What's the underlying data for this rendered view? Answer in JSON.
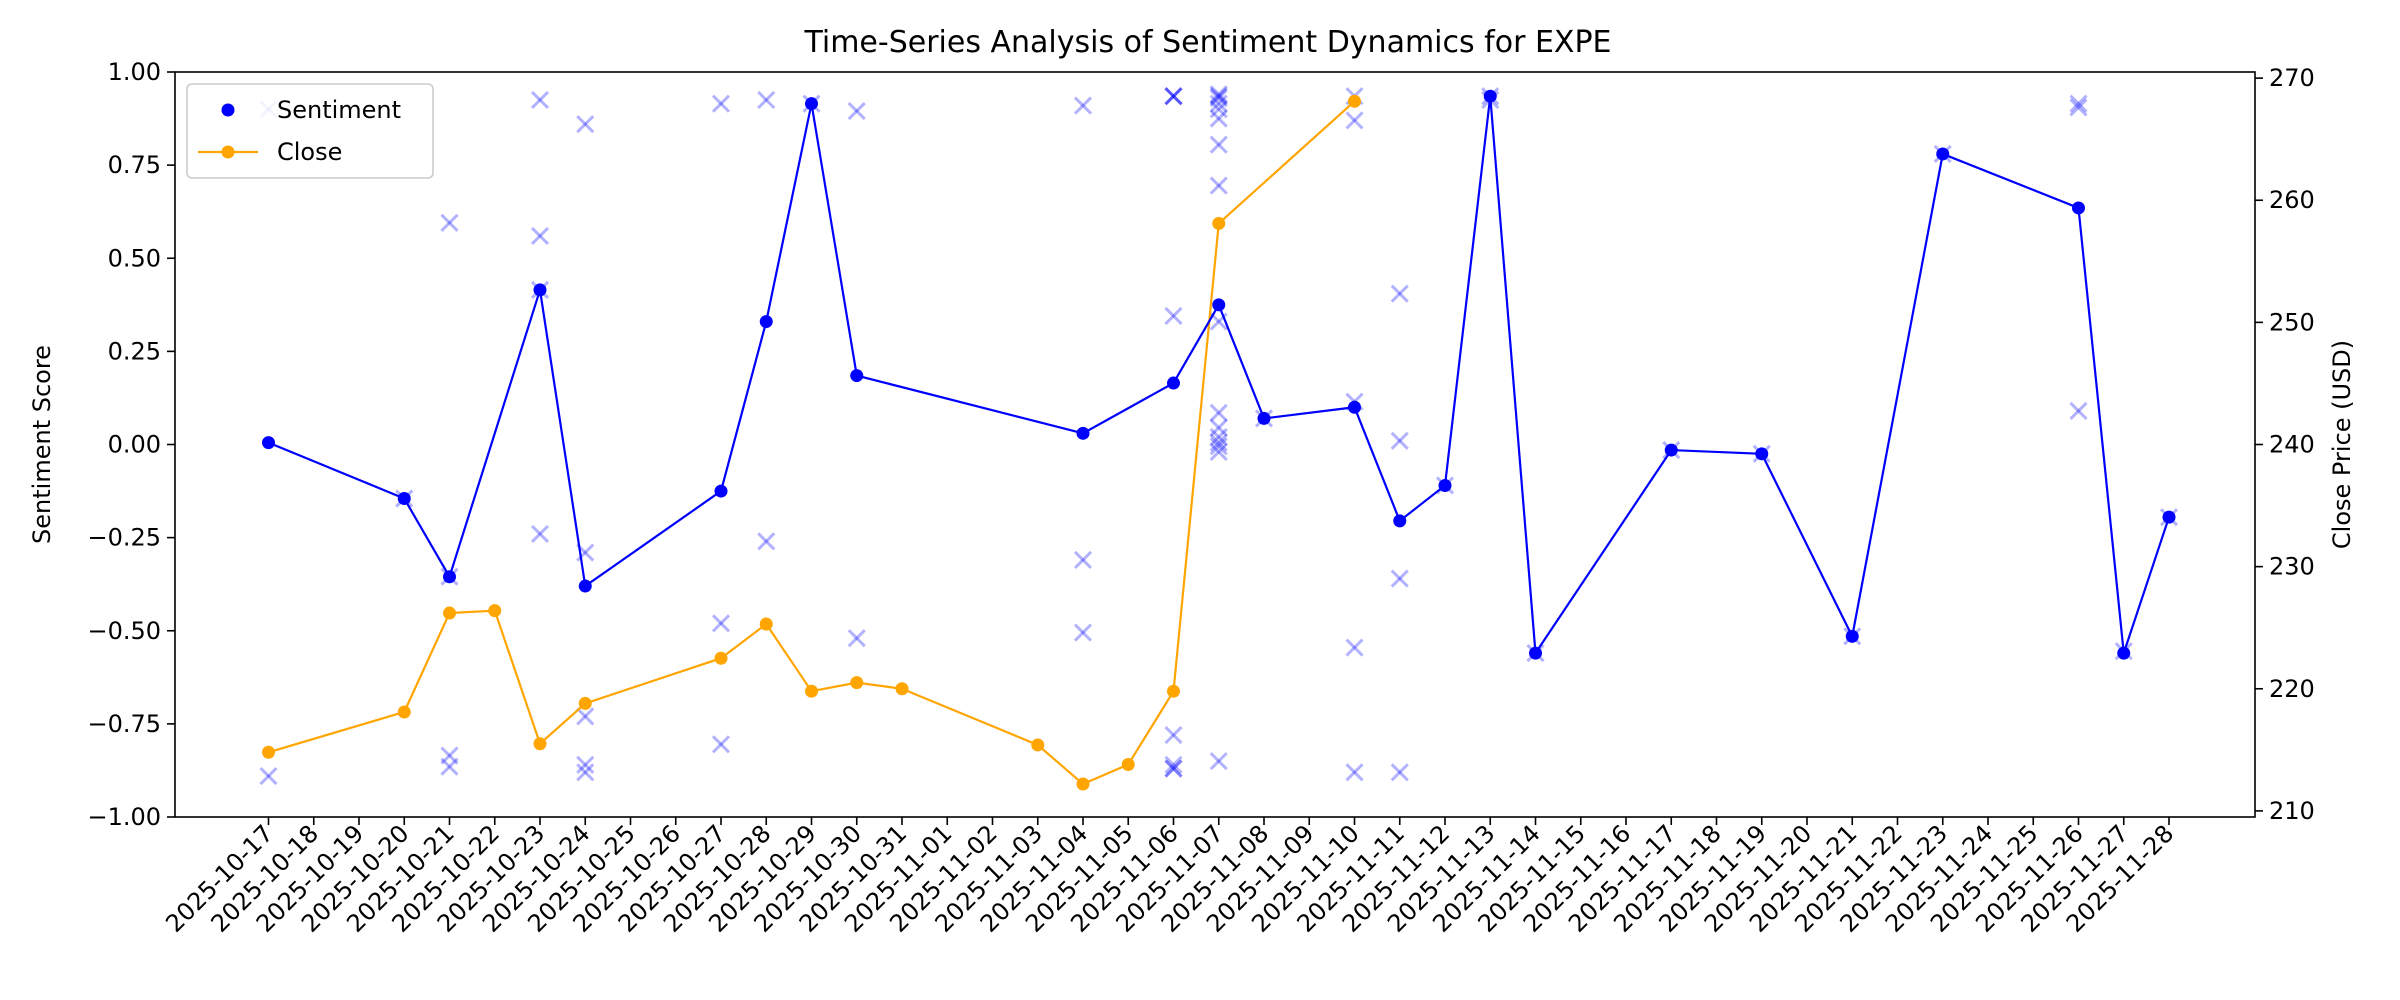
{
  "chart_data": {
    "type": "line",
    "title": "Time-Series Analysis of Sentiment Dynamics for EXPE",
    "xlabel": "",
    "ylabel": "Sentiment Score",
    "y2label": "Close Price (USD)",
    "ylim": [
      -1.0,
      1.0
    ],
    "y2lim": [
      209.5,
      270.5
    ],
    "y_ticks": [
      "1.00",
      "0.75",
      "0.50",
      "0.25",
      "0.00",
      "−0.25",
      "−0.50",
      "−0.75",
      "−1.00"
    ],
    "y_tick_values": [
      1.0,
      0.75,
      0.5,
      0.25,
      0.0,
      -0.25,
      -0.5,
      -0.75,
      -1.0
    ],
    "y2_ticks": [
      "270",
      "260",
      "250",
      "240",
      "230",
      "220",
      "210"
    ],
    "y2_tick_values": [
      270,
      260,
      250,
      240,
      230,
      220,
      210
    ],
    "grid": false,
    "legend_position": "top-left",
    "x_categories": [
      "2025-10-17",
      "2025-10-18",
      "2025-10-19",
      "2025-10-20",
      "2025-10-21",
      "2025-10-22",
      "2025-10-23",
      "2025-10-24",
      "2025-10-25",
      "2025-10-26",
      "2025-10-27",
      "2025-10-28",
      "2025-10-29",
      "2025-10-30",
      "2025-10-31",
      "2025-11-01",
      "2025-11-02",
      "2025-11-03",
      "2025-11-04",
      "2025-11-05",
      "2025-11-06",
      "2025-11-07",
      "2025-11-08",
      "2025-11-09",
      "2025-11-10",
      "2025-11-11",
      "2025-11-12",
      "2025-11-13",
      "2025-11-14",
      "2025-11-15",
      "2025-11-16",
      "2025-11-17",
      "2025-11-18",
      "2025-11-19",
      "2025-11-20",
      "2025-11-21",
      "2025-11-22",
      "2025-11-23",
      "2025-11-24",
      "2025-11-25",
      "2025-11-26",
      "2025-11-27",
      "2025-11-28"
    ],
    "x_tick_labels": [
      "2025-10-17",
      "2025-10-18",
      "2025-10-19",
      "2025-10-20",
      "2025-10-21",
      "2025-10-22",
      "2025-10-23",
      "2025-10-24",
      "2025-10-25",
      "2025-10-26",
      "2025-10-27",
      "2025-10-28",
      "2025-10-29",
      "2025-10-30",
      "2025-10-31",
      "2025-11-01",
      "2025-11-02",
      "2025-11-03",
      "2025-11-04",
      "2025-11-05",
      "2025-11-06",
      "2025-11-07",
      "2025-11-08",
      "2025-11-09",
      "2025-11-10",
      "2025-11-11",
      "2025-11-12",
      "2025-11-13",
      "2025-11-14",
      "2025-11-15",
      "2025-11-16",
      "2025-11-17",
      "2025-11-18",
      "2025-11-19",
      "2025-11-20",
      "2025-11-21",
      "2025-11-22",
      "2025-11-23",
      "2025-11-24",
      "2025-11-25",
      "2025-11-26",
      "2025-11-27",
      "2025-11-28"
    ],
    "series": [
      {
        "name": "Sentiment",
        "axis": "left",
        "color": "#0000ff",
        "marker": "circle",
        "points": [
          {
            "x": "2025-10-17",
            "y": 0.005
          },
          {
            "x": "2025-10-20",
            "y": -0.145
          },
          {
            "x": "2025-10-21",
            "y": -0.355
          },
          {
            "x": "2025-10-23",
            "y": 0.415
          },
          {
            "x": "2025-10-24",
            "y": -0.38
          },
          {
            "x": "2025-10-27",
            "y": -0.125
          },
          {
            "x": "2025-10-28",
            "y": 0.33
          },
          {
            "x": "2025-10-29",
            "y": 0.915
          },
          {
            "x": "2025-10-30",
            "y": 0.185
          },
          {
            "x": "2025-11-04",
            "y": 0.03
          },
          {
            "x": "2025-11-06",
            "y": 0.165
          },
          {
            "x": "2025-11-07",
            "y": 0.375
          },
          {
            "x": "2025-11-08",
            "y": 0.07
          },
          {
            "x": "2025-11-10",
            "y": 0.1
          },
          {
            "x": "2025-11-11",
            "y": -0.205
          },
          {
            "x": "2025-11-12",
            "y": -0.11
          },
          {
            "x": "2025-11-13",
            "y": 0.935
          },
          {
            "x": "2025-11-14",
            "y": -0.56
          },
          {
            "x": "2025-11-17",
            "y": -0.015
          },
          {
            "x": "2025-11-19",
            "y": -0.025
          },
          {
            "x": "2025-11-21",
            "y": -0.515
          },
          {
            "x": "2025-11-23",
            "y": 0.78
          },
          {
            "x": "2025-11-26",
            "y": 0.635
          },
          {
            "x": "2025-11-27",
            "y": -0.56
          },
          {
            "x": "2025-11-28",
            "y": -0.195
          }
        ]
      },
      {
        "name": "Close",
        "axis": "right",
        "color": "#ffa500",
        "marker": "circle",
        "points": [
          {
            "x": "2025-10-17",
            "y": 214.8
          },
          {
            "x": "2025-10-20",
            "y": 218.1
          },
          {
            "x": "2025-10-21",
            "y": 226.2
          },
          {
            "x": "2025-10-22",
            "y": 226.4
          },
          {
            "x": "2025-10-23",
            "y": 215.5
          },
          {
            "x": "2025-10-24",
            "y": 218.8
          },
          {
            "x": "2025-10-27",
            "y": 222.5
          },
          {
            "x": "2025-10-28",
            "y": 225.3
          },
          {
            "x": "2025-10-29",
            "y": 219.8
          },
          {
            "x": "2025-10-30",
            "y": 220.5
          },
          {
            "x": "2025-10-31",
            "y": 220.0
          },
          {
            "x": "2025-11-03",
            "y": 215.4
          },
          {
            "x": "2025-11-04",
            "y": 212.2
          },
          {
            "x": "2025-11-05",
            "y": 213.8
          },
          {
            "x": "2025-11-06",
            "y": 219.8
          },
          {
            "x": "2025-11-07",
            "y": 258.1
          },
          {
            "x": "2025-11-10",
            "y": 268.1
          }
        ]
      }
    ],
    "scatter_series": {
      "name": "",
      "axis": "left",
      "color": "#0000ff",
      "marker": "x",
      "alpha": 0.3,
      "points": [
        {
          "x": "2025-10-17",
          "y": 0.9
        },
        {
          "x": "2025-10-17",
          "y": -0.89
        },
        {
          "x": "2025-10-20",
          "y": -0.145
        },
        {
          "x": "2025-10-21",
          "y": 0.595
        },
        {
          "x": "2025-10-21",
          "y": -0.835
        },
        {
          "x": "2025-10-21",
          "y": -0.865
        },
        {
          "x": "2025-10-21",
          "y": -0.355
        },
        {
          "x": "2025-10-23",
          "y": 0.925
        },
        {
          "x": "2025-10-23",
          "y": 0.56
        },
        {
          "x": "2025-10-23",
          "y": -0.24
        },
        {
          "x": "2025-10-23",
          "y": 0.415
        },
        {
          "x": "2025-10-24",
          "y": 0.86
        },
        {
          "x": "2025-10-24",
          "y": -0.29
        },
        {
          "x": "2025-10-24",
          "y": -0.73
        },
        {
          "x": "2025-10-24",
          "y": -0.86
        },
        {
          "x": "2025-10-24",
          "y": -0.88
        },
        {
          "x": "2025-10-27",
          "y": 0.915
        },
        {
          "x": "2025-10-27",
          "y": -0.48
        },
        {
          "x": "2025-10-27",
          "y": -0.805
        },
        {
          "x": "2025-10-28",
          "y": 0.925
        },
        {
          "x": "2025-10-28",
          "y": -0.26
        },
        {
          "x": "2025-10-29",
          "y": 0.915
        },
        {
          "x": "2025-10-30",
          "y": 0.895
        },
        {
          "x": "2025-10-30",
          "y": -0.52
        },
        {
          "x": "2025-11-04",
          "y": 0.91
        },
        {
          "x": "2025-11-04",
          "y": -0.31
        },
        {
          "x": "2025-11-04",
          "y": -0.505
        },
        {
          "x": "2025-11-06",
          "y": 0.935
        },
        {
          "x": "2025-11-06",
          "y": 0.935
        },
        {
          "x": "2025-11-06",
          "y": 0.935
        },
        {
          "x": "2025-11-06",
          "y": 0.345
        },
        {
          "x": "2025-11-06",
          "y": -0.78
        },
        {
          "x": "2025-11-06",
          "y": -0.86
        },
        {
          "x": "2025-11-06",
          "y": -0.87
        },
        {
          "x": "2025-11-06",
          "y": -0.87
        },
        {
          "x": "2025-11-07",
          "y": 0.94
        },
        {
          "x": "2025-11-07",
          "y": 0.935
        },
        {
          "x": "2025-11-07",
          "y": 0.93
        },
        {
          "x": "2025-11-07",
          "y": 0.915
        },
        {
          "x": "2025-11-07",
          "y": 0.9
        },
        {
          "x": "2025-11-07",
          "y": 0.875
        },
        {
          "x": "2025-11-07",
          "y": 0.805
        },
        {
          "x": "2025-11-07",
          "y": 0.695
        },
        {
          "x": "2025-11-07",
          "y": 0.33
        },
        {
          "x": "2025-11-07",
          "y": 0.085
        },
        {
          "x": "2025-11-07",
          "y": 0.045
        },
        {
          "x": "2025-11-07",
          "y": 0.02
        },
        {
          "x": "2025-11-07",
          "y": 0.005
        },
        {
          "x": "2025-11-07",
          "y": -0.005
        },
        {
          "x": "2025-11-07",
          "y": -0.02
        },
        {
          "x": "2025-11-07",
          "y": -0.85
        },
        {
          "x": "2025-11-08",
          "y": 0.07
        },
        {
          "x": "2025-11-10",
          "y": 0.935
        },
        {
          "x": "2025-11-10",
          "y": 0.87
        },
        {
          "x": "2025-11-10",
          "y": 0.115
        },
        {
          "x": "2025-11-10",
          "y": -0.545
        },
        {
          "x": "2025-11-10",
          "y": -0.88
        },
        {
          "x": "2025-11-11",
          "y": 0.405
        },
        {
          "x": "2025-11-11",
          "y": 0.01
        },
        {
          "x": "2025-11-11",
          "y": -0.36
        },
        {
          "x": "2025-11-11",
          "y": -0.88
        },
        {
          "x": "2025-11-12",
          "y": -0.11
        },
        {
          "x": "2025-11-13",
          "y": 0.935
        },
        {
          "x": "2025-11-13",
          "y": 0.925
        },
        {
          "x": "2025-11-14",
          "y": -0.56
        },
        {
          "x": "2025-11-17",
          "y": -0.015
        },
        {
          "x": "2025-11-19",
          "y": -0.025
        },
        {
          "x": "2025-11-21",
          "y": -0.515
        },
        {
          "x": "2025-11-23",
          "y": 0.78
        },
        {
          "x": "2025-11-26",
          "y": 0.915
        },
        {
          "x": "2025-11-26",
          "y": 0.905
        },
        {
          "x": "2025-11-26",
          "y": 0.09
        },
        {
          "x": "2025-11-27",
          "y": -0.555
        },
        {
          "x": "2025-11-28",
          "y": -0.195
        }
      ]
    },
    "legend": [
      {
        "label": "Sentiment",
        "color": "#0000ff",
        "style": "dot"
      },
      {
        "label": "Close",
        "color": "#ffa500",
        "style": "line-dot"
      }
    ]
  }
}
